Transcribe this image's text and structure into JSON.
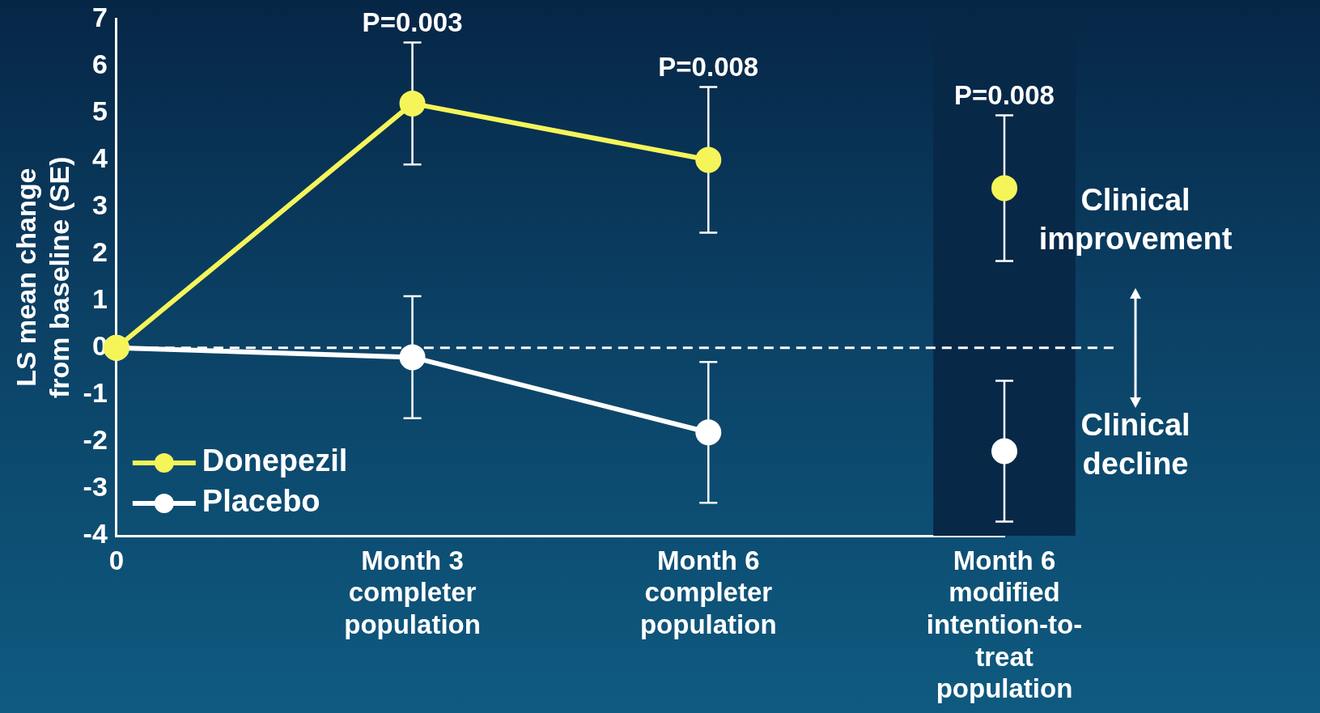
{
  "chart_data": {
    "type": "line",
    "ylabel": "LS mean change\nfrom baseline (SE)",
    "categories": [
      "0",
      "Month 3\ncompleter\npopulation",
      "Month 6\ncompleter\npopulation",
      "Month 6\nmodified\nintention-to-\ntreat\npopulation"
    ],
    "series": [
      {
        "name": "Donepezil",
        "color": "#f5f55a",
        "values": [
          0,
          5.2,
          4.0,
          null
        ],
        "errors": [
          null,
          1.3,
          1.55,
          null
        ]
      },
      {
        "name": "Placebo",
        "color": "#ffffff",
        "values": [
          0,
          -0.2,
          -1.8,
          null
        ],
        "errors": [
          null,
          1.3,
          1.5,
          null
        ]
      },
      {
        "type": "scatter",
        "color": "#f5f55a",
        "x": [
          "Month 6\nmodified\nintention-to-\ntreat\npopulation"
        ],
        "values": [
          3.4
        ],
        "errors": [
          1.55
        ]
      },
      {
        "type": "scatter",
        "color": "#ffffff",
        "x": [
          "Month 6\nmodified\nintention-to-\ntreat\npopulation"
        ],
        "values": [
          -2.2
        ],
        "errors": [
          1.5
        ]
      }
    ],
    "ylim": [
      -4,
      7
    ],
    "yticks": [
      -4,
      -3,
      -2,
      -1,
      0,
      1,
      2,
      3,
      4,
      5,
      6,
      7
    ],
    "marker": "circle",
    "legend": "bottom left",
    "grid": false,
    "ref_lines": [
      {
        "axis": "y",
        "value": 0,
        "line_style": "dashed",
        "color": "#ffffff"
      }
    ],
    "bands": [
      {
        "axis": "x",
        "from": "Month 6\nmodified\nintention-to-\ntreat\npopulation",
        "to": "Month 6\nmodified\nintention-to-\ntreat\npopulation",
        "color": "#082848"
      }
    ],
    "annotations": [
      "P=0.003",
      "P=0.008",
      "P=0.008",
      "Clinical\nimprovement",
      "Clinical\ndecline"
    ]
  }
}
